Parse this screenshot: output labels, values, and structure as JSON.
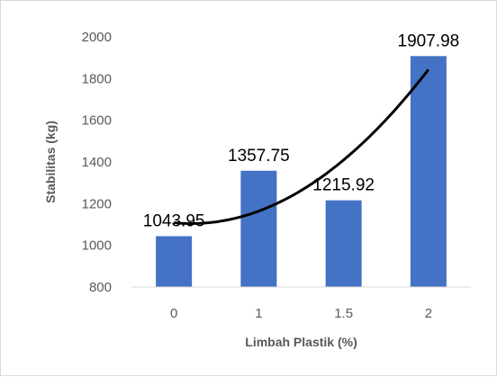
{
  "chart_data": {
    "type": "bar",
    "title": "",
    "xlabel": "Limbah Plastik (%)",
    "ylabel": "Stabilitas  (kg)",
    "categories": [
      "0",
      "1",
      "1.5",
      "2"
    ],
    "values": [
      1043.95,
      1357.75,
      1215.92,
      1907.98
    ],
    "data_labels": [
      "1043.95",
      "1357.75",
      "1215.92",
      "1907.98"
    ],
    "ylim": [
      800,
      2000
    ],
    "yticks": [
      800,
      1000,
      1200,
      1400,
      1600,
      1800,
      2000
    ],
    "grid": false,
    "legend": "none",
    "bar_color": "#4472C4",
    "trendline": {
      "type": "polynomial",
      "color": "#000000"
    }
  }
}
